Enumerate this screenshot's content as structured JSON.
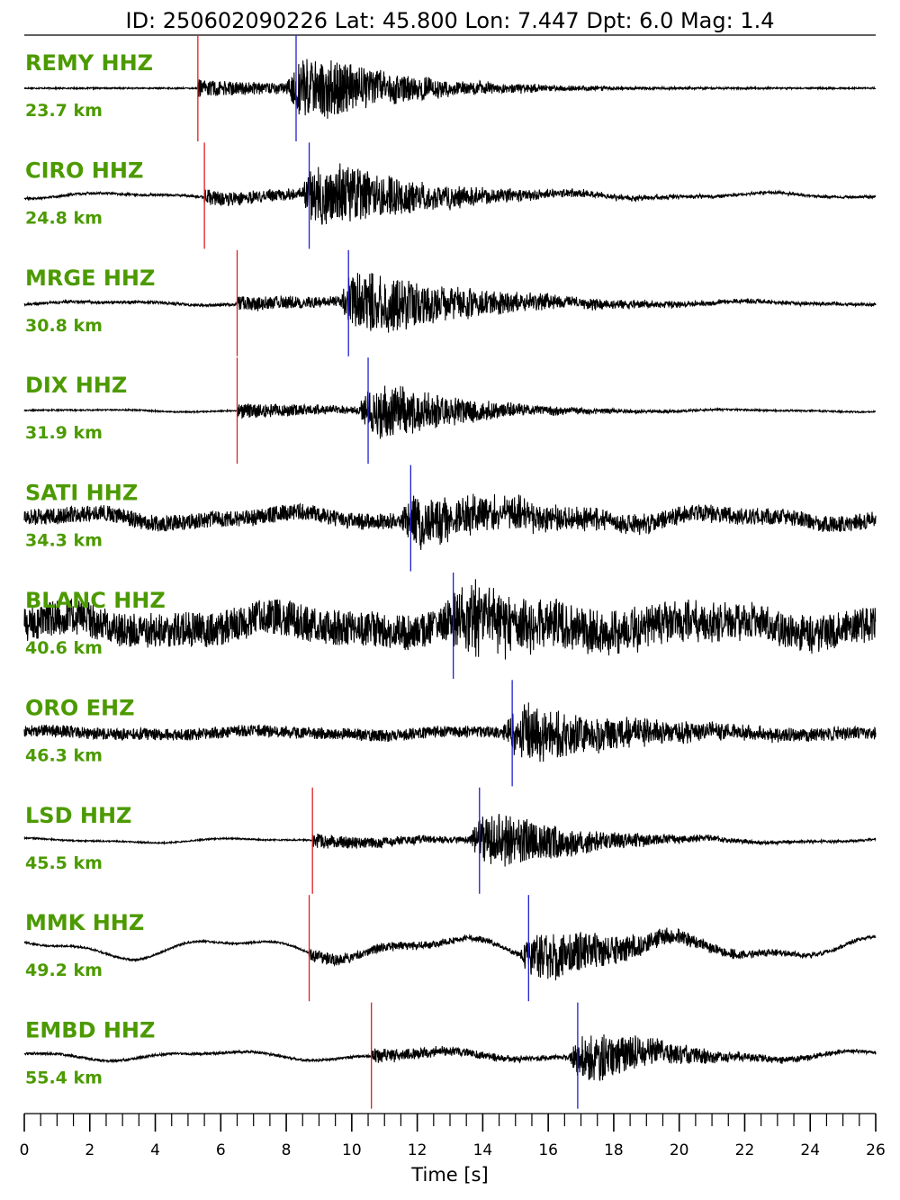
{
  "chart_data": {
    "type": "line",
    "title": "ID: 250602090226 Lat:  45.800 Lon:   7.447 Dpt:     6.0 Mag:   1.4",
    "xlabel": "Time [s]",
    "xlim": [
      0,
      26
    ],
    "xticks": [
      "0",
      "2",
      "4",
      "6",
      "8",
      "10",
      "12",
      "14",
      "16",
      "18",
      "20",
      "22",
      "24",
      "26"
    ],
    "minor_tick_step": 0.5,
    "grid": false,
    "label_color": "#4c9a00",
    "trace_color": "#000000",
    "p_pick_color": "#e02020",
    "s_pick_color": "#2020d0",
    "stations": [
      {
        "name": "REMY HHZ",
        "distance": "23.7 km",
        "p": 5.3,
        "s": 8.3,
        "noise": 0.03,
        "amp": 1.0,
        "dur": 9,
        "drift": 0.0
      },
      {
        "name": "CIRO HHZ",
        "distance": "24.8 km",
        "p": 5.5,
        "s": 8.7,
        "noise": 0.05,
        "amp": 0.95,
        "dur": 10,
        "drift": 0.12
      },
      {
        "name": "MRGE HHZ",
        "distance": "30.8 km",
        "p": 6.5,
        "s": 9.9,
        "noise": 0.06,
        "amp": 0.9,
        "dur": 11,
        "drift": 0.08
      },
      {
        "name": "DIX HHZ",
        "distance": "31.9 km",
        "p": 6.5,
        "s": 10.5,
        "noise": 0.03,
        "amp": 0.9,
        "dur": 8,
        "drift": 0.05
      },
      {
        "name": "SATI HHZ",
        "distance": "34.3 km",
        "p": null,
        "s": 11.8,
        "noise": 0.35,
        "amp": 0.75,
        "dur": 10,
        "drift": 0.25
      },
      {
        "name": "BLANC HHZ",
        "distance": "40.6 km",
        "p": null,
        "s": 13.1,
        "noise": 0.75,
        "amp": 0.8,
        "dur": 12,
        "drift": 0.35
      },
      {
        "name": "ORO EHZ",
        "distance": "46.3 km",
        "p": null,
        "s": 14.9,
        "noise": 0.25,
        "amp": 0.8,
        "dur": 10,
        "drift": 0.1
      },
      {
        "name": "LSD HHZ",
        "distance": "45.5 km",
        "p": 8.8,
        "s": 13.9,
        "noise": 0.03,
        "amp": 0.85,
        "dur": 9,
        "drift": 0.1
      },
      {
        "name": "MMK HHZ",
        "distance": "49.2 km",
        "p": 8.7,
        "s": 15.4,
        "noise": 0.04,
        "amp": 0.75,
        "dur": 10,
        "drift": 0.45
      },
      {
        "name": "EMBD HHZ",
        "distance": "55.4 km",
        "p": 10.6,
        "s": 16.9,
        "noise": 0.05,
        "amp": 0.8,
        "dur": 8,
        "drift": 0.2
      }
    ]
  }
}
